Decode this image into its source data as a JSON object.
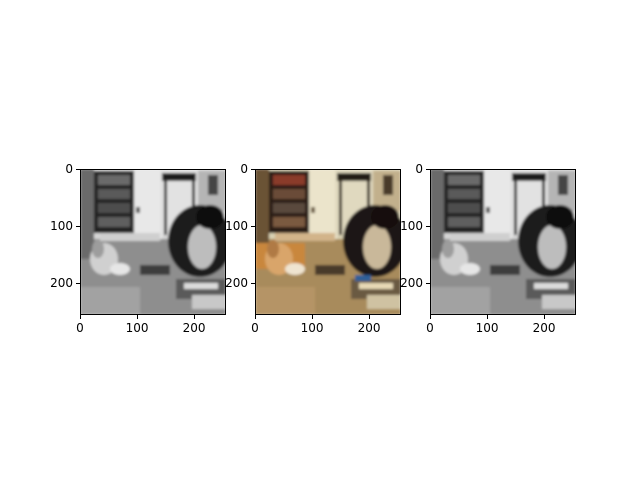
{
  "panels": [
    {
      "name": "grayscale-left",
      "kind": "grayscale",
      "x_ticks": [
        "0",
        "100",
        "200"
      ],
      "y_ticks": [
        "0",
        "100",
        "200"
      ],
      "x_tick_values": [
        0,
        100,
        200
      ],
      "y_tick_values": [
        0,
        100,
        200
      ]
    },
    {
      "name": "color-center",
      "kind": "color",
      "x_ticks": [
        "0",
        "100",
        "200"
      ],
      "y_ticks": [
        "0",
        "100",
        "200"
      ],
      "x_tick_values": [
        0,
        100,
        200
      ],
      "y_tick_values": [
        0,
        100,
        200
      ]
    },
    {
      "name": "grayscale-right",
      "kind": "grayscale",
      "x_ticks": [
        "0",
        "100",
        "200"
      ],
      "y_ticks": [
        "0",
        "100",
        "200"
      ],
      "x_tick_values": [
        0,
        100,
        200
      ],
      "y_tick_values": [
        0,
        100,
        200
      ]
    }
  ],
  "image_extent": [
    0,
    256
  ],
  "colors": {
    "gray_floor": "#9a9a9a",
    "gray_wall": "#d8d8d8",
    "gray_shelf": "#2a2a2a",
    "color_floor": "#b79a6a",
    "color_wall": "#d9d2b6",
    "color_shelf": "#3a2a20",
    "color_wood": "#c78a4a"
  }
}
